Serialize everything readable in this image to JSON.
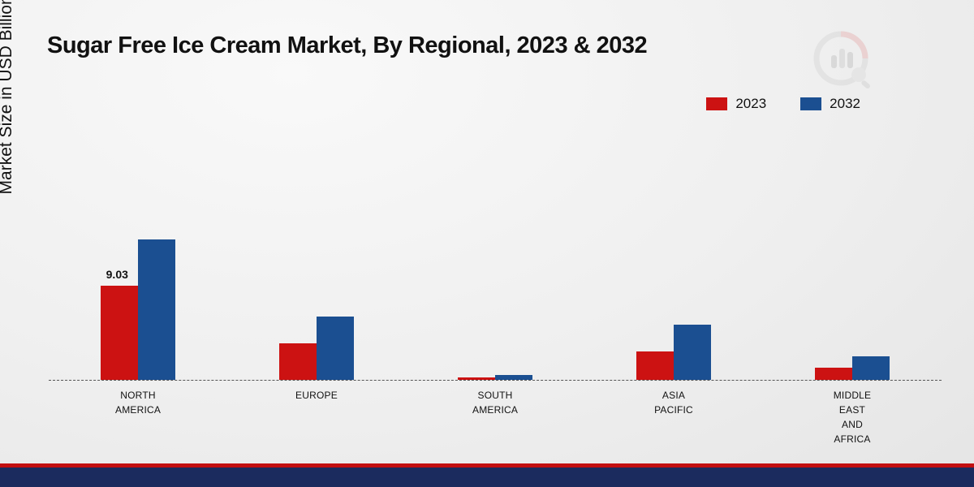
{
  "title": "Sugar Free Ice Cream Market, By Regional, 2023 & 2032",
  "ylabel": "Market Size in USD Billion",
  "legend": [
    {
      "label": "2023",
      "color": "#cc1212"
    },
    {
      "label": "2032",
      "color": "#1b4f91"
    }
  ],
  "colors": {
    "red": "#cc1212",
    "blue": "#1b4f91",
    "footer_navy": "#1b2b5e",
    "footer_red": "#c20f10"
  },
  "chart_data": {
    "type": "bar",
    "title": "Sugar Free Ice Cream Market, By Regional, 2023 & 2032",
    "xlabel": "",
    "ylabel": "Market Size in USD Billion",
    "ylim": [
      0,
      15
    ],
    "grid": false,
    "legend_position": "top-right",
    "categories": [
      "NORTH AMERICA",
      "EUROPE",
      "SOUTH AMERICA",
      "ASIA PACIFIC",
      "MIDDLE EAST AND AFRICA"
    ],
    "series": [
      {
        "name": "2023",
        "color": "#cc1212",
        "values": [
          9.03,
          3.5,
          0.2,
          2.7,
          1.2
        ]
      },
      {
        "name": "2032",
        "color": "#1b4f91",
        "values": [
          13.5,
          6.1,
          0.45,
          5.3,
          2.3
        ]
      }
    ],
    "annotations": [
      {
        "category_index": 0,
        "series_index": 0,
        "text": "9.03"
      }
    ],
    "baseline": "dashed"
  }
}
